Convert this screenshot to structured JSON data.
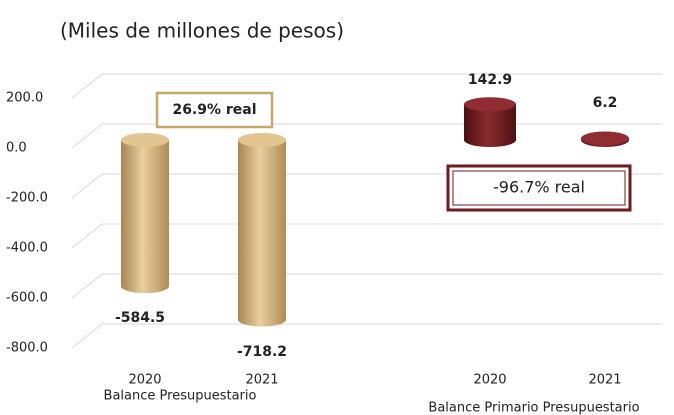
{
  "chart_data": {
    "type": "bar",
    "subtitle": "(Miles de millones de pesos)",
    "ylim": [
      -800,
      200
    ],
    "yticks": [
      {
        "value": 200,
        "label": "200.0"
      },
      {
        "value": 0,
        "label": "0.0"
      },
      {
        "value": -200,
        "label": "-200.0"
      },
      {
        "value": -400,
        "label": "-400.0"
      },
      {
        "value": -600,
        "label": "-600.0"
      },
      {
        "value": -800,
        "label": "-800.0"
      }
    ],
    "grid": true,
    "groups": [
      {
        "label": "Balance Presupuestario",
        "categories": [
          "2020",
          "2021"
        ],
        "values": [
          -584.5,
          -718.2
        ],
        "color": "#c9a66b",
        "annotation": "26.9% real"
      },
      {
        "label": "Balance Primario Presupuestario",
        "categories": [
          "2020",
          "2021"
        ],
        "values": [
          142.9,
          6.2
        ],
        "color": "#6e1a1e",
        "annotation": "-96.7% real"
      }
    ]
  }
}
